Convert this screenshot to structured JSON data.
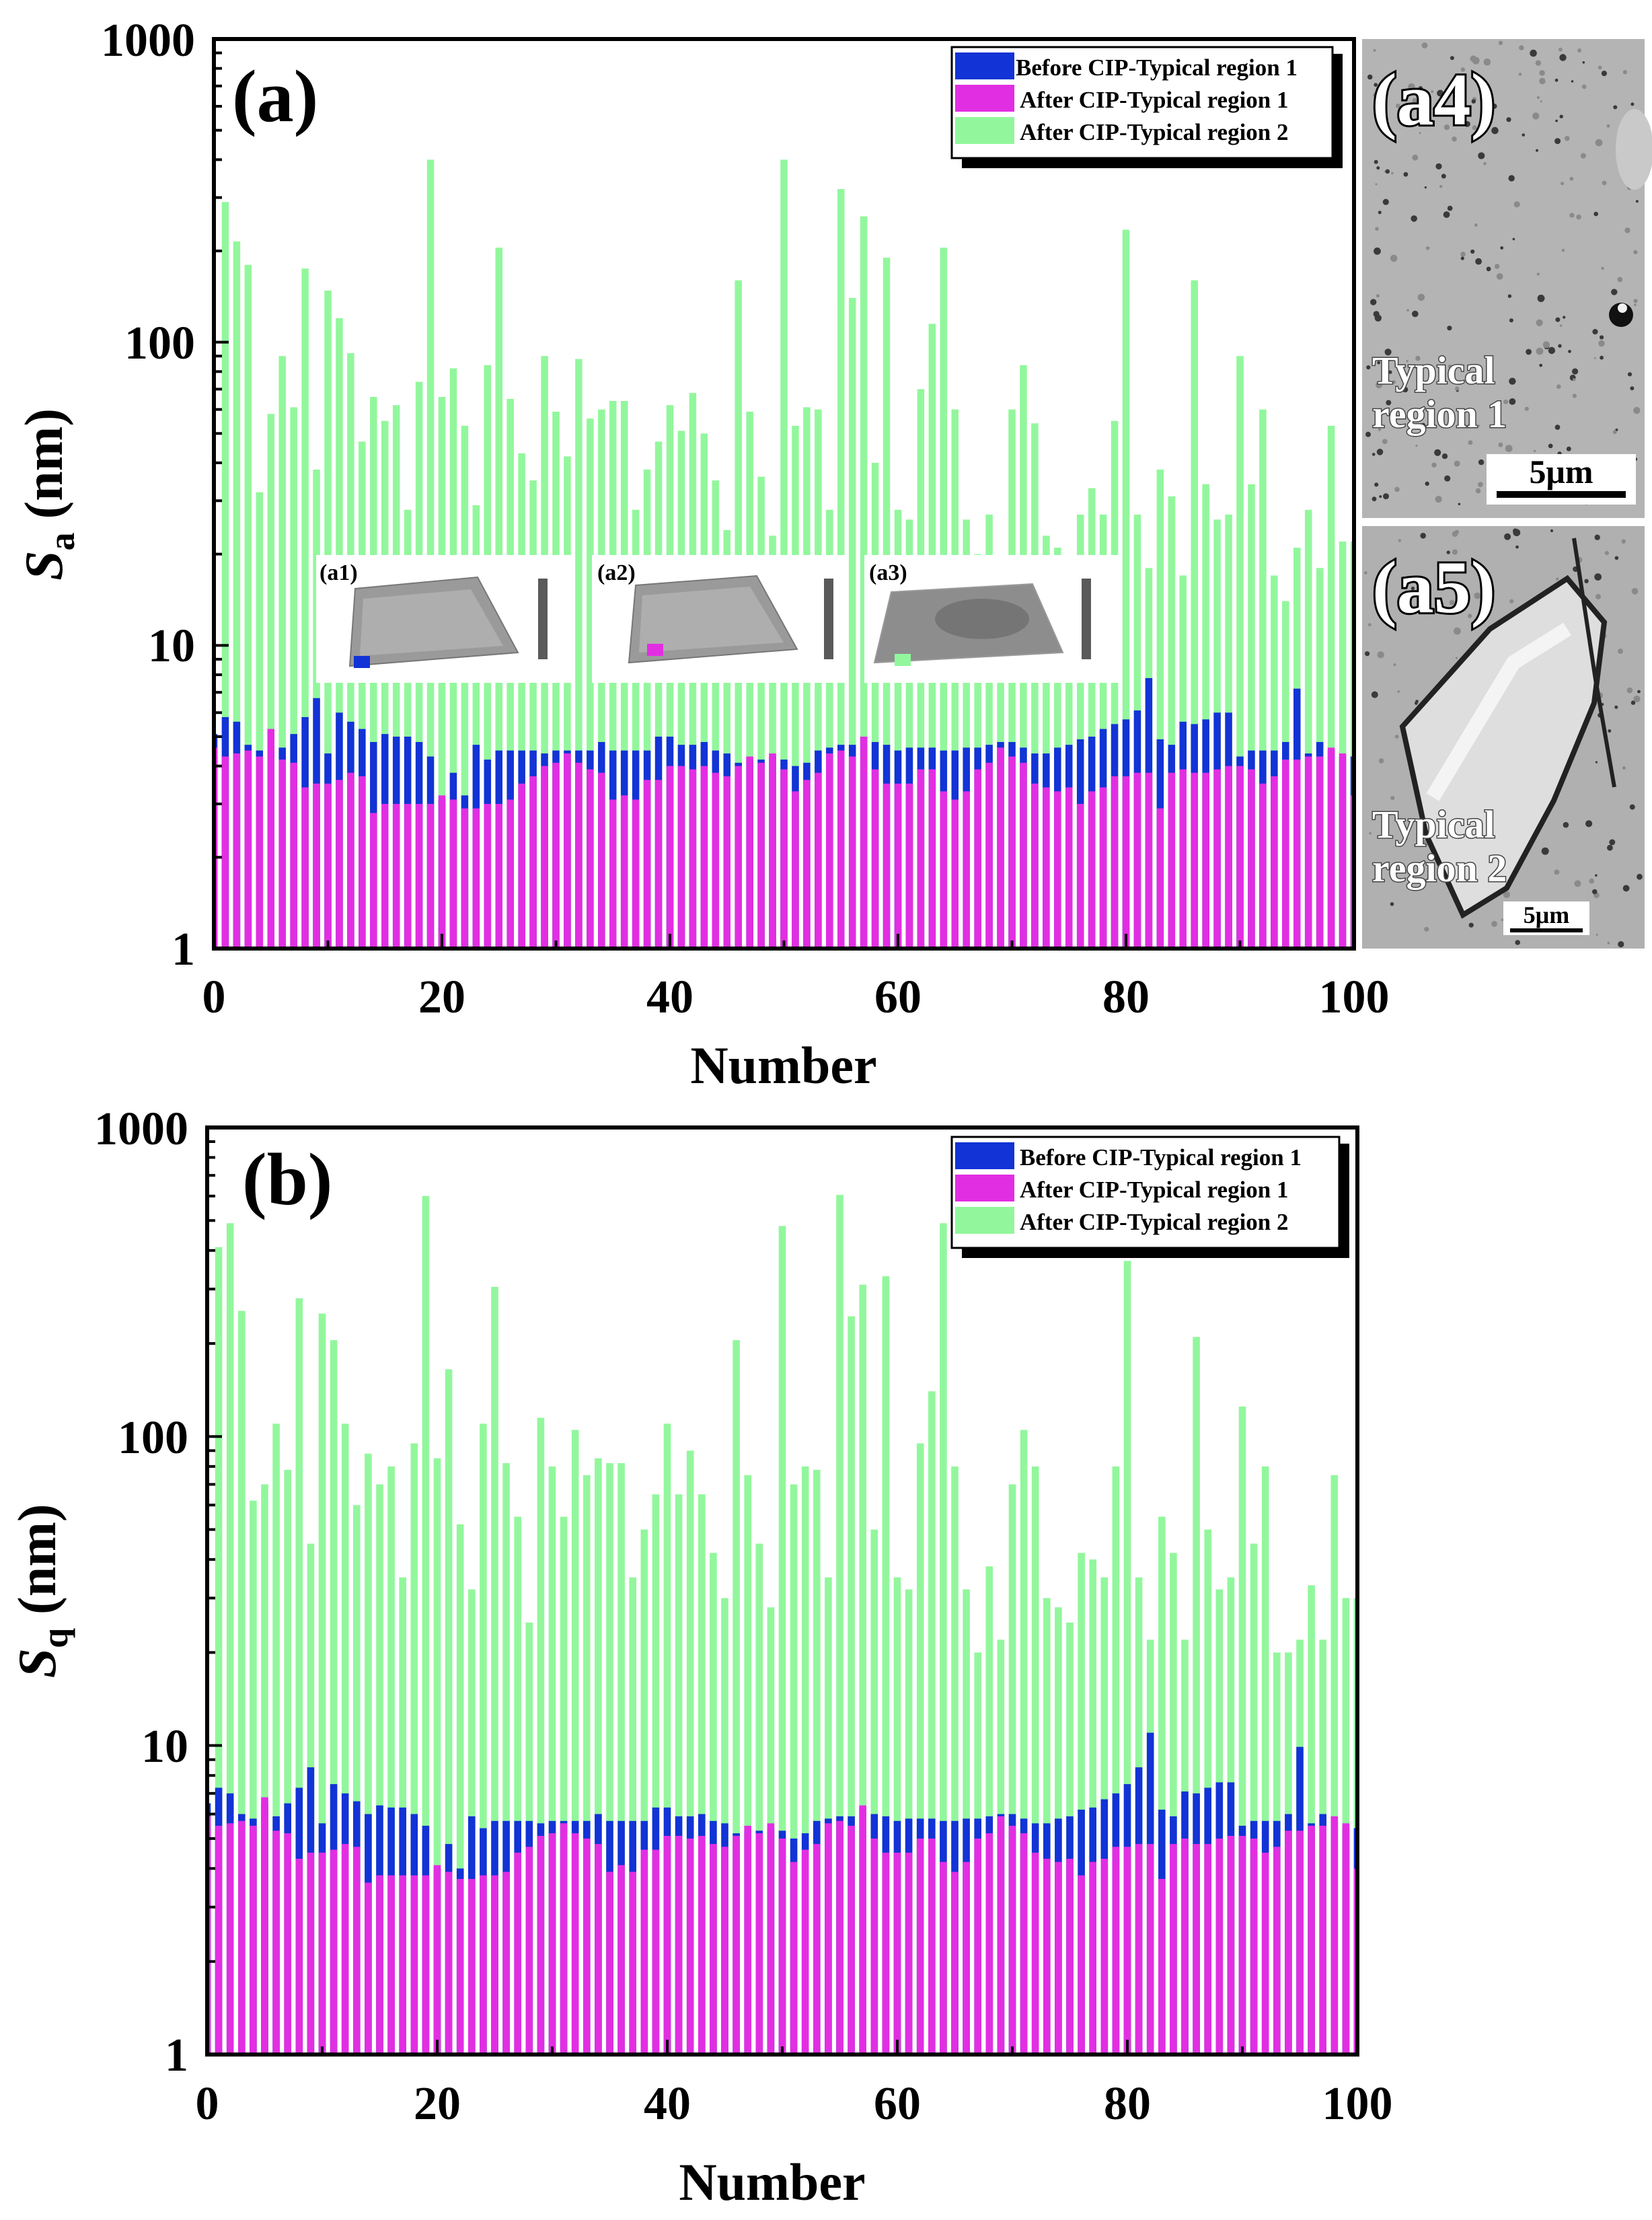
{
  "colors": {
    "before_region1": "#1233d6",
    "after_region1": "#e22ee2",
    "after_region2": "#92f79c",
    "sem_bg": "#b4b4b4",
    "scalebar_bg": "#ffffff"
  },
  "chart_data": [
    {
      "type": "bar",
      "panel_label": "(a)",
      "xlabel": "Number",
      "ylabel_main": "S",
      "ylabel_sub": "a",
      "ylabel_unit": " (nm)",
      "yscale": "log",
      "ylim": [
        1,
        1000
      ],
      "xlim": [
        0,
        100
      ],
      "xticks": [
        "0",
        "20",
        "40",
        "60",
        "80",
        "100"
      ],
      "yticks": [
        "1",
        "10",
        "100",
        "1000"
      ],
      "legend_position": "top-right",
      "series": [
        {
          "name": "Before CIP-Typical region 1",
          "values": [
            5.1,
            5.8,
            5.6,
            4.7,
            4.5,
            5.0,
            4.6,
            5.1,
            5.8,
            6.7,
            4.4,
            6.0,
            5.6,
            5.3,
            4.8,
            5.1,
            5.0,
            5.0,
            4.8,
            4.3,
            3.1,
            3.8,
            3.2,
            4.7,
            4.2,
            4.5,
            4.5,
            4.5,
            4.5,
            4.4,
            4.5,
            4.5,
            4.5,
            4.5,
            4.8,
            4.5,
            4.5,
            4.5,
            4.5,
            5.0,
            5.0,
            4.7,
            4.7,
            4.8,
            4.5,
            4.4,
            4.1,
            4.2,
            4.2,
            4.3,
            4.2,
            4.0,
            4.1,
            4.5,
            4.6,
            4.7,
            4.7,
            5.0,
            4.8,
            4.7,
            4.5,
            4.6,
            4.6,
            4.6,
            4.5,
            4.5,
            4.6,
            4.6,
            4.7,
            4.8,
            4.8,
            4.6,
            4.4,
            4.4,
            4.6,
            4.7,
            4.9,
            5.0,
            5.3,
            5.5,
            5.7,
            6.1,
            7.8,
            4.9,
            4.7,
            5.6,
            5.5,
            5.7,
            6.0,
            6.0,
            4.3,
            4.5,
            4.5,
            4.5,
            4.8,
            7.2,
            4.4,
            4.8,
            4.5,
            4.3,
            4.3
          ]
        },
        {
          "name": "After CIP-Typical region 1",
          "values": [
            4.6,
            4.3,
            4.4,
            4.5,
            4.3,
            5.3,
            4.2,
            4.1,
            3.4,
            3.5,
            3.5,
            3.6,
            3.8,
            3.7,
            2.8,
            3.0,
            3.0,
            3.0,
            3.0,
            3.0,
            3.2,
            3.1,
            2.9,
            2.9,
            3.0,
            3.0,
            3.1,
            3.5,
            3.7,
            4.0,
            4.1,
            4.4,
            4.1,
            3.9,
            3.8,
            3.1,
            3.2,
            3.1,
            3.6,
            3.6,
            4.0,
            4.0,
            3.9,
            4.0,
            3.8,
            3.7,
            4.0,
            4.3,
            4.1,
            4.4,
            3.9,
            3.3,
            3.6,
            3.8,
            4.4,
            4.5,
            4.3,
            5.0,
            3.9,
            3.5,
            3.5,
            3.5,
            3.9,
            3.9,
            3.3,
            3.1,
            3.3,
            3.9,
            4.1,
            4.6,
            4.3,
            4.1,
            3.5,
            3.4,
            3.3,
            3.4,
            3.0,
            3.3,
            3.4,
            3.7,
            3.7,
            3.8,
            3.8,
            2.9,
            3.8,
            3.9,
            3.8,
            3.8,
            3.9,
            4.0,
            4.0,
            3.9,
            3.5,
            3.7,
            4.2,
            4.2,
            4.3,
            4.3,
            4.6,
            4.4,
            3.2
          ]
        },
        {
          "name": "After CIP-Typical region 2",
          "values": [
            4.6,
            290,
            215,
            180,
            32,
            58,
            90,
            61,
            175,
            38,
            148,
            120,
            92,
            47,
            66,
            55,
            62,
            28,
            74,
            400,
            66,
            82,
            53,
            29,
            84,
            205,
            65,
            43,
            35,
            90,
            59,
            42,
            88,
            56,
            60,
            64,
            64,
            28,
            38,
            47,
            62,
            51,
            68,
            50,
            35,
            24,
            160,
            59,
            36,
            23,
            400,
            53,
            61,
            60,
            28,
            320,
            140,
            260,
            40,
            190,
            28,
            26,
            70,
            115,
            205,
            60,
            26,
            20,
            27,
            18,
            60,
            84,
            54,
            23,
            21,
            17,
            27,
            33,
            27,
            55,
            235,
            27,
            18,
            38,
            31,
            17,
            160,
            34,
            26,
            27,
            90,
            34,
            60,
            17,
            14,
            21,
            28,
            18,
            53,
            22,
            22
          ]
        }
      ],
      "legend": [
        "Before CIP-Typical region 1",
        "After CIP-Typical region 1",
        "After CIP-Typical region 2"
      ],
      "insets": [
        "(a1)",
        "(a2)",
        "(a3)"
      ],
      "sem_panels": [
        {
          "label": "(a4)",
          "caption_line1": "Typical",
          "caption_line2": "region 1",
          "scalebar": "5μm"
        },
        {
          "label": "(a5)",
          "caption_line1": "Typical",
          "caption_line2": "region 2",
          "scalebar": "5μm"
        }
      ]
    },
    {
      "type": "bar",
      "panel_label": "(b)",
      "xlabel": "Number",
      "ylabel_main": "S",
      "ylabel_sub": "q",
      "ylabel_unit": " (nm)",
      "yscale": "log",
      "ylim": [
        1,
        1000
      ],
      "xlim": [
        0,
        100
      ],
      "xticks": [
        "0",
        "20",
        "40",
        "60",
        "80",
        "100"
      ],
      "yticks": [
        "1",
        "10",
        "100",
        "1000"
      ],
      "legend_position": "top-right",
      "series": [
        {
          "name": "Before CIP-Typical region 1",
          "values": [
            6.5,
            7.3,
            7.0,
            6.0,
            5.8,
            6.5,
            5.9,
            6.5,
            7.3,
            8.5,
            5.6,
            7.5,
            7.0,
            6.6,
            6.0,
            6.4,
            6.3,
            6.3,
            6.0,
            5.5,
            4.0,
            4.8,
            4.0,
            5.9,
            5.4,
            5.7,
            5.7,
            5.7,
            5.7,
            5.6,
            5.7,
            5.7,
            5.7,
            5.7,
            6.0,
            5.7,
            5.7,
            5.7,
            5.7,
            6.3,
            6.3,
            5.9,
            5.9,
            6.0,
            5.7,
            5.6,
            5.2,
            5.3,
            5.3,
            5.4,
            5.3,
            5.0,
            5.2,
            5.7,
            5.8,
            5.9,
            5.9,
            6.3,
            6.0,
            5.9,
            5.7,
            5.8,
            5.8,
            5.8,
            5.7,
            5.7,
            5.8,
            5.8,
            5.9,
            6.0,
            6.0,
            5.8,
            5.6,
            5.6,
            5.8,
            5.9,
            6.2,
            6.3,
            6.7,
            7.0,
            7.5,
            8.5,
            11.0,
            6.2,
            5.9,
            7.1,
            7.0,
            7.3,
            7.6,
            7.6,
            5.5,
            5.7,
            5.7,
            5.7,
            6.0,
            9.9,
            5.6,
            6.0,
            5.7,
            5.4,
            5.4
          ]
        },
        {
          "name": "After CIP-Typical region 1",
          "values": [
            5.9,
            5.5,
            5.6,
            5.7,
            5.5,
            6.8,
            5.3,
            5.2,
            4.3,
            4.5,
            4.5,
            4.6,
            4.8,
            4.7,
            3.6,
            3.8,
            3.8,
            3.8,
            3.8,
            3.8,
            4.1,
            3.9,
            3.7,
            3.7,
            3.8,
            3.8,
            3.9,
            4.5,
            4.7,
            5.1,
            5.2,
            5.6,
            5.2,
            5.0,
            4.8,
            3.9,
            4.1,
            3.9,
            4.6,
            4.6,
            5.1,
            5.1,
            5.0,
            5.1,
            4.8,
            4.7,
            5.1,
            5.5,
            5.2,
            5.6,
            5.0,
            4.2,
            4.6,
            4.8,
            5.6,
            5.7,
            5.5,
            6.4,
            5.0,
            4.5,
            4.5,
            4.5,
            5.0,
            5.0,
            4.2,
            3.9,
            4.2,
            5.0,
            5.2,
            5.9,
            5.5,
            5.2,
            4.5,
            4.3,
            4.2,
            4.3,
            3.8,
            4.2,
            4.3,
            4.7,
            4.7,
            4.8,
            4.8,
            3.7,
            4.8,
            5.0,
            4.8,
            4.8,
            5.0,
            5.1,
            5.1,
            5.0,
            4.5,
            4.7,
            5.3,
            5.3,
            5.5,
            5.5,
            5.9,
            5.6,
            4.0
          ]
        },
        {
          "name": "After CIP-Typical region 2",
          "values": [
            5.9,
            410,
            490,
            255,
            62,
            70,
            110,
            78,
            280,
            45,
            250,
            205,
            110,
            60,
            88,
            70,
            80,
            35,
            95,
            600,
            85,
            165,
            52,
            32,
            110,
            305,
            82,
            55,
            25,
            115,
            80,
            55,
            105,
            75,
            85,
            82,
            82,
            35,
            50,
            65,
            110,
            65,
            90,
            65,
            42,
            30,
            205,
            75,
            45,
            28,
            480,
            70,
            80,
            78,
            35,
            605,
            245,
            310,
            50,
            330,
            35,
            32,
            95,
            140,
            490,
            80,
            32,
            20,
            38,
            22,
            70,
            105,
            80,
            30,
            28,
            25,
            42,
            40,
            35,
            80,
            370,
            35,
            22,
            55,
            42,
            22,
            210,
            50,
            32,
            35,
            125,
            45,
            80,
            20,
            20,
            22,
            33,
            22,
            75,
            30,
            30
          ]
        }
      ],
      "legend": [
        "Before CIP-Typical region 1",
        "After CIP-Typical region 1",
        "After CIP-Typical region 2"
      ]
    }
  ]
}
